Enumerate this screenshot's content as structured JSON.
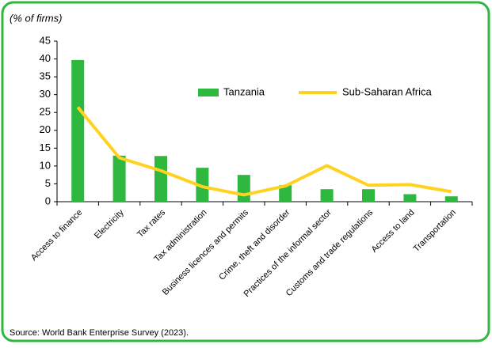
{
  "chart_data": {
    "type": "bar_line",
    "y_label": "(% of firms)",
    "source": "Source: World Bank Enterprise Survey (2023).",
    "categories": [
      "Access to finance",
      "Electricity",
      "Tax rates",
      "Tax administration",
      "Business licences and permits",
      "Crime, theft and disorder",
      "Practices of the informal sector",
      "Customs and trade regulations",
      "Access to land",
      "Transportation"
    ],
    "series": [
      {
        "name": "Tanzania",
        "type": "bar",
        "color": "#2eb83f",
        "values": [
          39.7,
          12.9,
          12.8,
          9.5,
          7.5,
          4.6,
          3.5,
          3.5,
          2.1,
          1.5
        ]
      },
      {
        "name": "Sub-Saharan Africa",
        "type": "line",
        "color": "#ffd21f",
        "values": [
          26.5,
          12.3,
          8.7,
          4.2,
          1.9,
          4.4,
          10.1,
          4.6,
          4.8,
          2.8
        ]
      }
    ],
    "ylim": [
      0,
      45
    ],
    "yticks": [
      0,
      5,
      10,
      15,
      20,
      25,
      30,
      35,
      40,
      45
    ],
    "grid": false,
    "legend": "top-right"
  }
}
